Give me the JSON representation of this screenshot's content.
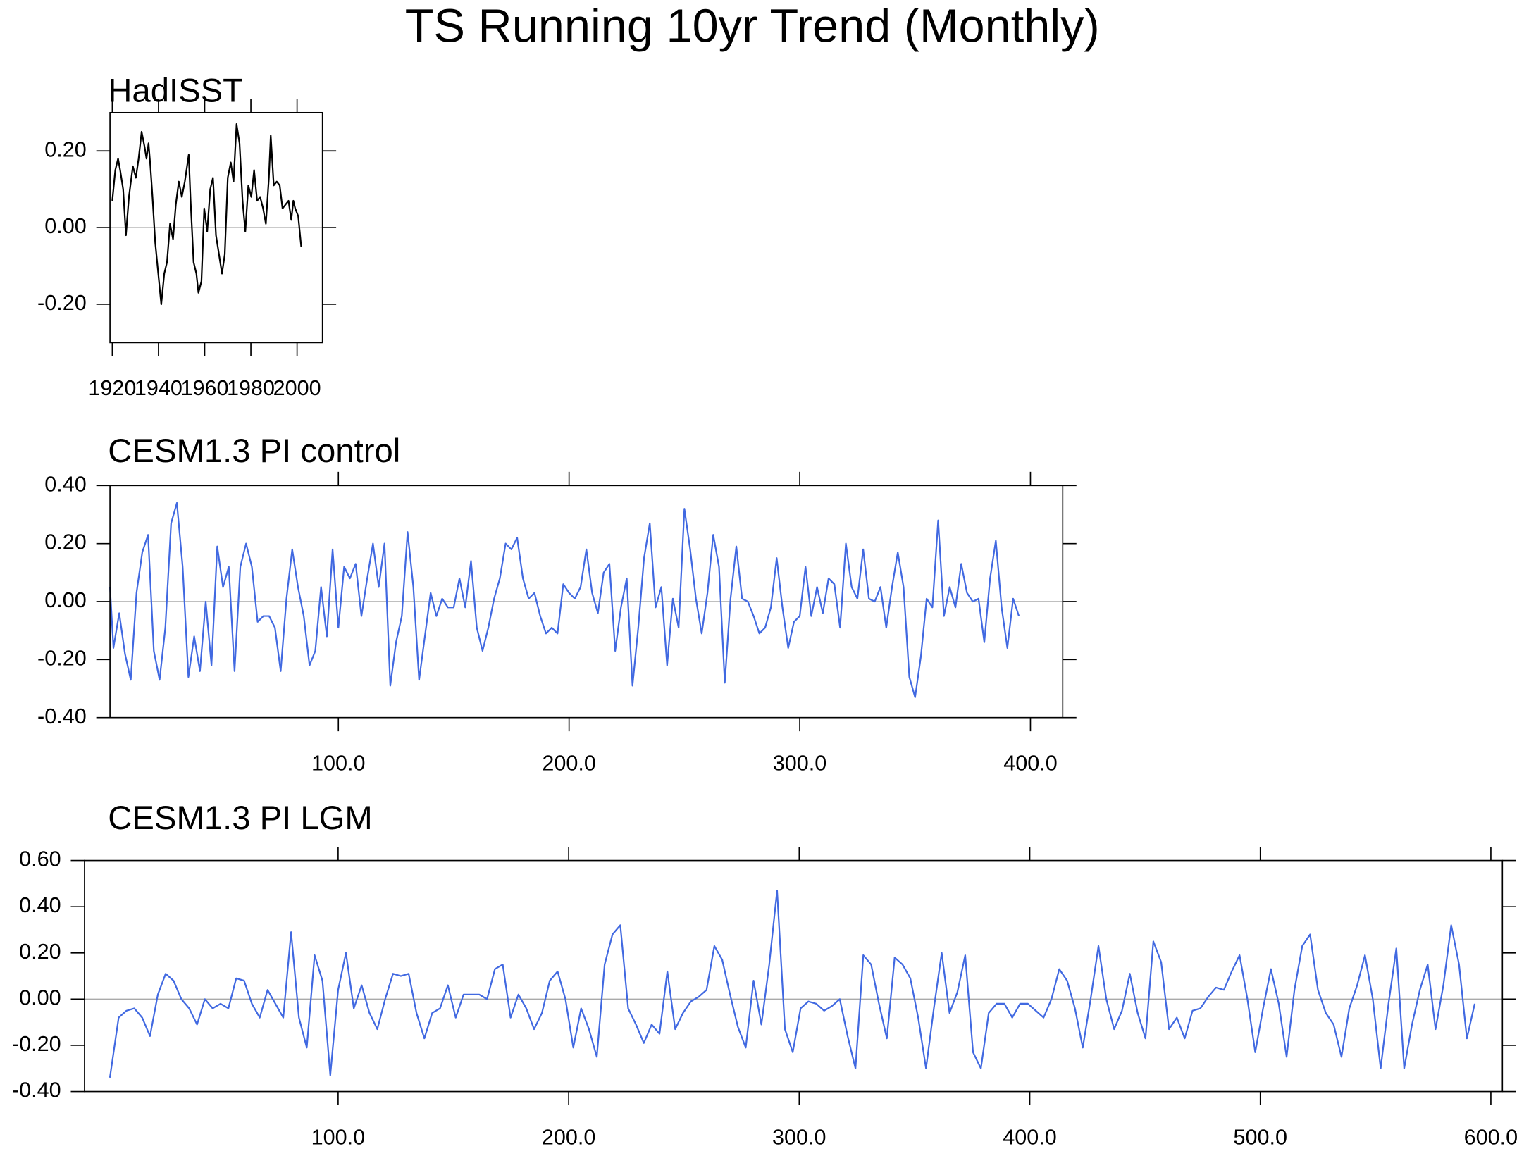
{
  "title": "TS Running 10yr Trend (Monthly)",
  "chart_data": [
    {
      "type": "line",
      "title": "HadISST",
      "color": "#000000",
      "reference_line": 0,
      "x": [
        1920.0,
        1921.3,
        1922.5,
        1923.4,
        1924.7,
        1925.9,
        1927.2,
        1928.9,
        1930.2,
        1931.4,
        1932.7,
        1934.0,
        1934.8,
        1935.7,
        1936.5,
        1937.4,
        1938.6,
        1939.9,
        1941.2,
        1942.5,
        1943.7,
        1945.0,
        1946.3,
        1947.5,
        1948.8,
        1950.1,
        1951.4,
        1953.1,
        1953.9,
        1955.2,
        1956.4,
        1957.3,
        1958.6,
        1959.8,
        1961.1,
        1962.4,
        1963.6,
        1964.9,
        1966.2,
        1967.5,
        1968.7,
        1970.0,
        1971.3,
        1972.5,
        1973.8,
        1975.1,
        1976.4,
        1977.6,
        1978.9,
        1980.2,
        1981.4,
        1982.7,
        1984.0,
        1985.3,
        1986.5,
        1987.8,
        1988.6,
        1989.9,
        1991.2,
        1992.5,
        1993.7,
        1995.0,
        1996.3,
        1997.5,
        1998.4,
        1999.2,
        2000.5,
        2001.8
      ],
      "values": [
        0.07,
        0.15,
        0.18,
        0.15,
        0.1,
        -0.02,
        0.08,
        0.16,
        0.13,
        0.18,
        0.25,
        0.21,
        0.18,
        0.22,
        0.16,
        0.08,
        -0.04,
        -0.12,
        -0.2,
        -0.12,
        -0.09,
        0.01,
        -0.03,
        0.06,
        0.12,
        0.08,
        0.12,
        0.19,
        0.07,
        -0.09,
        -0.12,
        -0.17,
        -0.14,
        0.05,
        -0.01,
        0.1,
        0.13,
        -0.02,
        -0.07,
        -0.12,
        -0.07,
        0.13,
        0.17,
        0.12,
        0.27,
        0.22,
        0.07,
        -0.01,
        0.11,
        0.08,
        0.15,
        0.07,
        0.08,
        0.05,
        0.01,
        0.13,
        0.24,
        0.11,
        0.12,
        0.11,
        0.05,
        0.06,
        0.07,
        0.02,
        0.07,
        0.05,
        0.03,
        -0.05
      ],
      "xlim": [
        1919,
        2011
      ],
      "ylim": [
        -0.3,
        0.3
      ],
      "xticks": [
        1920,
        1940,
        1960,
        1980,
        2000
      ],
      "yticks": [
        {
          "value": -0.2,
          "label": "-0.20"
        },
        {
          "value": 0,
          "label": "0.00"
        },
        {
          "value": 0.2,
          "label": "0.20"
        }
      ]
    },
    {
      "type": "line",
      "title": "CESM1.3 PI control",
      "color": "#4169e1",
      "reference_line": 0,
      "x": [
        1,
        2.5,
        5,
        7.5,
        10,
        12.5,
        15,
        17.5,
        20,
        22.5,
        25,
        27.5,
        30,
        32.5,
        35,
        37.5,
        40,
        42.5,
        45,
        47.5,
        50,
        52.5,
        55,
        57.5,
        60,
        62.5,
        65,
        67.5,
        70,
        72.5,
        75,
        77.5,
        80,
        82.5,
        85,
        87.5,
        90,
        92.5,
        95,
        97.5,
        100,
        102.5,
        105,
        107.5,
        110,
        112.5,
        115,
        117.5,
        120,
        122.5,
        125,
        127.5,
        130,
        132.5,
        135,
        137.5,
        140,
        142.5,
        145,
        147.5,
        150,
        152.5,
        155,
        157.5,
        160,
        162.5,
        165,
        167.5,
        170,
        172.5,
        175,
        177.5,
        180,
        182.5,
        185,
        187.5,
        190,
        192.5,
        195,
        197.5,
        200,
        202.5,
        205,
        207.5,
        210,
        212.5,
        215,
        217.5,
        220,
        222.5,
        225,
        227.5,
        230,
        232.5,
        235,
        237.5,
        240,
        242.5,
        245,
        247.5,
        250,
        252.5,
        255,
        257.5,
        260,
        262.5,
        265,
        267.5,
        270,
        272.5,
        275,
        277.5,
        280,
        282.5,
        285,
        287.5,
        290,
        292.5,
        295,
        297.5,
        300,
        302.5,
        305,
        307.5,
        310,
        312.5,
        315,
        317.5,
        320,
        322.5,
        325,
        327.5,
        330,
        332.5,
        335,
        337.5,
        340,
        342.5,
        345,
        347.5,
        350,
        352.5,
        355,
        357.5,
        360,
        362.5,
        365,
        367.5,
        370,
        372.5,
        375,
        377.5,
        380,
        382.5,
        385,
        387.5,
        390,
        392.5,
        395
      ],
      "values": [
        0.05,
        -0.16,
        -0.04,
        -0.18,
        -0.27,
        0.03,
        0.17,
        0.23,
        -0.17,
        -0.27,
        -0.09,
        0.27,
        0.34,
        0.12,
        -0.26,
        -0.12,
        -0.24,
        0.0,
        -0.22,
        0.19,
        0.05,
        0.12,
        -0.24,
        0.12,
        0.2,
        0.12,
        -0.07,
        -0.05,
        -0.05,
        -0.09,
        -0.24,
        0.01,
        0.18,
        0.05,
        -0.05,
        -0.22,
        -0.17,
        0.05,
        -0.12,
        0.18,
        -0.09,
        0.12,
        0.08,
        0.13,
        -0.05,
        0.08,
        0.2,
        0.05,
        0.2,
        -0.29,
        -0.14,
        -0.05,
        0.24,
        0.05,
        -0.27,
        -0.12,
        0.03,
        -0.05,
        0.01,
        -0.02,
        -0.02,
        0.08,
        -0.02,
        0.14,
        -0.09,
        -0.17,
        -0.09,
        0.01,
        0.08,
        0.2,
        0.18,
        0.22,
        0.08,
        0.01,
        0.03,
        -0.05,
        -0.11,
        -0.09,
        -0.11,
        0.06,
        0.03,
        0.01,
        0.05,
        0.18,
        0.03,
        -0.04,
        0.1,
        0.13,
        -0.17,
        -0.02,
        0.08,
        -0.29,
        -0.09,
        0.15,
        0.27,
        -0.02,
        0.05,
        -0.22,
        0.01,
        -0.09,
        0.32,
        0.18,
        0.01,
        -0.11,
        0.03,
        0.23,
        0.12,
        -0.28,
        0.01,
        0.19,
        0.01,
        0.0,
        -0.05,
        -0.11,
        -0.09,
        -0.02,
        0.15,
        -0.02,
        -0.16,
        -0.07,
        -0.05,
        0.12,
        -0.05,
        0.05,
        -0.04,
        0.08,
        0.06,
        -0.09,
        0.2,
        0.05,
        0.01,
        0.18,
        0.01,
        0.0,
        0.05,
        -0.09,
        0.05,
        0.17,
        0.05,
        -0.26,
        -0.33,
        -0.19,
        0.01,
        -0.02,
        0.28,
        -0.05,
        0.05,
        -0.02,
        0.13,
        0.03,
        0.0,
        0.01,
        -0.14,
        0.08,
        0.21,
        -0.02,
        -0.16,
        0.01,
        -0.05
      ],
      "xlim": [
        1,
        414
      ],
      "ylim": [
        -0.4,
        0.4
      ],
      "xticks": [
        {
          "value": 100,
          "label": "100.0"
        },
        {
          "value": 200,
          "label": "200.0"
        },
        {
          "value": 300,
          "label": "300.0"
        },
        {
          "value": 400,
          "label": "400.0"
        }
      ],
      "yticks": [
        {
          "value": -0.4,
          "label": "-0.40"
        },
        {
          "value": -0.2,
          "label": "-0.20"
        },
        {
          "value": 0,
          "label": "0.00"
        },
        {
          "value": 0.2,
          "label": "0.20"
        },
        {
          "value": 0.4,
          "label": "0.40"
        }
      ]
    },
    {
      "type": "line",
      "title": "CESM1.3 PI LGM",
      "color": "#4169e1",
      "reference_line": 0,
      "x": [
        1,
        4.8,
        8.2,
        11.6,
        15,
        18.4,
        21.8,
        25.2,
        28.6,
        32,
        35.4,
        38.8,
        42.2,
        45.6,
        49,
        52.4,
        55.8,
        59.2,
        62.6,
        66,
        69.4,
        72.8,
        76.2,
        79.6,
        83,
        86.4,
        89.8,
        93.2,
        96.6,
        100,
        103.4,
        106.8,
        110.2,
        113.6,
        117,
        120.4,
        123.8,
        127.2,
        130.6,
        134,
        137.4,
        140.8,
        144.2,
        147.6,
        151,
        154.4,
        157.8,
        161.2,
        164.6,
        168,
        171.4,
        174.8,
        178.2,
        181.6,
        185,
        188.4,
        191.8,
        195.2,
        198.6,
        202,
        205.4,
        208.8,
        212.2,
        215.6,
        219,
        222.4,
        225.8,
        229.2,
        232.6,
        236,
        239.4,
        242.8,
        246.2,
        249.6,
        253,
        256.4,
        259.8,
        263.2,
        266.6,
        270,
        273.4,
        276.8,
        280.2,
        283.6,
        287,
        290.4,
        293.8,
        297.2,
        300.6,
        304,
        307.4,
        310.8,
        314.2,
        317.6,
        321,
        324.4,
        327.8,
        331.2,
        334.6,
        338,
        341.4,
        344.8,
        348.2,
        351.6,
        355,
        358.4,
        361.8,
        365.2,
        368.6,
        372,
        375.4,
        378.8,
        382.2,
        385.6,
        389,
        392.4,
        395.8,
        399.2,
        402.6,
        406,
        409.4,
        412.8,
        416.2,
        419.6,
        423,
        426.4,
        429.8,
        433.2,
        436.6,
        440,
        443.4,
        446.8,
        450.2,
        453.6,
        457,
        460.4,
        463.8,
        467.2,
        470.6,
        474,
        477.4,
        480.8,
        484.2,
        487.6,
        491,
        494.4,
        497.8,
        501.2,
        504.6,
        508,
        511.4,
        514.8,
        518.2,
        521.6,
        525,
        528.4,
        531.8,
        535.2,
        538.6,
        542,
        545.4,
        548.8,
        552.2,
        555.6,
        559,
        562.4,
        565.8,
        569.2,
        572.6,
        576,
        579.4,
        582.8,
        586.2,
        589.6,
        593
      ],
      "values": [
        -0.34,
        -0.08,
        -0.05,
        -0.04,
        -0.08,
        -0.16,
        0.02,
        0.11,
        0.08,
        0.0,
        -0.04,
        -0.11,
        0.0,
        -0.04,
        -0.02,
        -0.04,
        0.09,
        0.08,
        -0.02,
        -0.08,
        0.04,
        -0.02,
        -0.08,
        0.29,
        -0.08,
        -0.21,
        0.19,
        0.08,
        -0.33,
        0.04,
        0.2,
        -0.04,
        0.06,
        -0.06,
        -0.13,
        0.0,
        0.11,
        0.1,
        0.11,
        -0.06,
        -0.17,
        -0.06,
        -0.04,
        0.06,
        -0.08,
        0.02,
        0.02,
        0.02,
        0.0,
        0.13,
        0.15,
        -0.08,
        0.02,
        -0.04,
        -0.13,
        -0.06,
        0.08,
        0.12,
        0.0,
        -0.21,
        -0.04,
        -0.13,
        -0.25,
        0.15,
        0.28,
        0.32,
        -0.04,
        -0.11,
        -0.19,
        -0.11,
        -0.15,
        0.12,
        -0.13,
        -0.06,
        -0.01,
        0.01,
        0.04,
        0.23,
        0.17,
        0.02,
        -0.12,
        -0.21,
        0.08,
        -0.11,
        0.15,
        0.47,
        -0.13,
        -0.23,
        -0.04,
        -0.01,
        -0.02,
        -0.05,
        -0.03,
        0.0,
        -0.16,
        -0.3,
        0.19,
        0.15,
        -0.02,
        -0.17,
        0.18,
        0.15,
        0.09,
        -0.08,
        -0.3,
        -0.04,
        0.2,
        -0.06,
        0.03,
        0.19,
        -0.23,
        -0.3,
        -0.06,
        -0.02,
        -0.02,
        -0.08,
        -0.02,
        -0.02,
        -0.05,
        -0.08,
        0.0,
        0.13,
        0.08,
        -0.04,
        -0.21,
        0.0,
        0.23,
        0.0,
        -0.13,
        -0.05,
        0.11,
        -0.06,
        -0.17,
        0.25,
        0.16,
        -0.13,
        -0.08,
        -0.17,
        -0.05,
        -0.04,
        0.01,
        0.05,
        0.04,
        0.12,
        0.19,
        0.0,
        -0.23,
        -0.04,
        0.13,
        -0.02,
        -0.25,
        0.04,
        0.23,
        0.28,
        0.04,
        -0.06,
        -0.11,
        -0.25,
        -0.04,
        0.06,
        0.19,
        0.0,
        -0.3,
        -0.02,
        0.22,
        -0.3,
        -0.11,
        0.04,
        0.15,
        -0.13,
        0.06,
        0.32,
        0.15,
        -0.17,
        -0.02
      ],
      "xlim": [
        -10,
        605
      ],
      "ylim": [
        -0.4,
        0.6
      ],
      "xticks": [
        {
          "value": 100,
          "label": "100.0"
        },
        {
          "value": 200,
          "label": "200.0"
        },
        {
          "value": 300,
          "label": "300.0"
        },
        {
          "value": 400,
          "label": "400.0"
        },
        {
          "value": 500,
          "label": "500.0"
        },
        {
          "value": 600,
          "label": "600.0"
        }
      ],
      "yticks": [
        {
          "value": -0.4,
          "label": "-0.40"
        },
        {
          "value": -0.2,
          "label": "-0.20"
        },
        {
          "value": 0,
          "label": "0.00"
        },
        {
          "value": 0.2,
          "label": "0.20"
        },
        {
          "value": 0.4,
          "label": "0.40"
        },
        {
          "value": 0.6,
          "label": "0.60"
        }
      ]
    }
  ]
}
